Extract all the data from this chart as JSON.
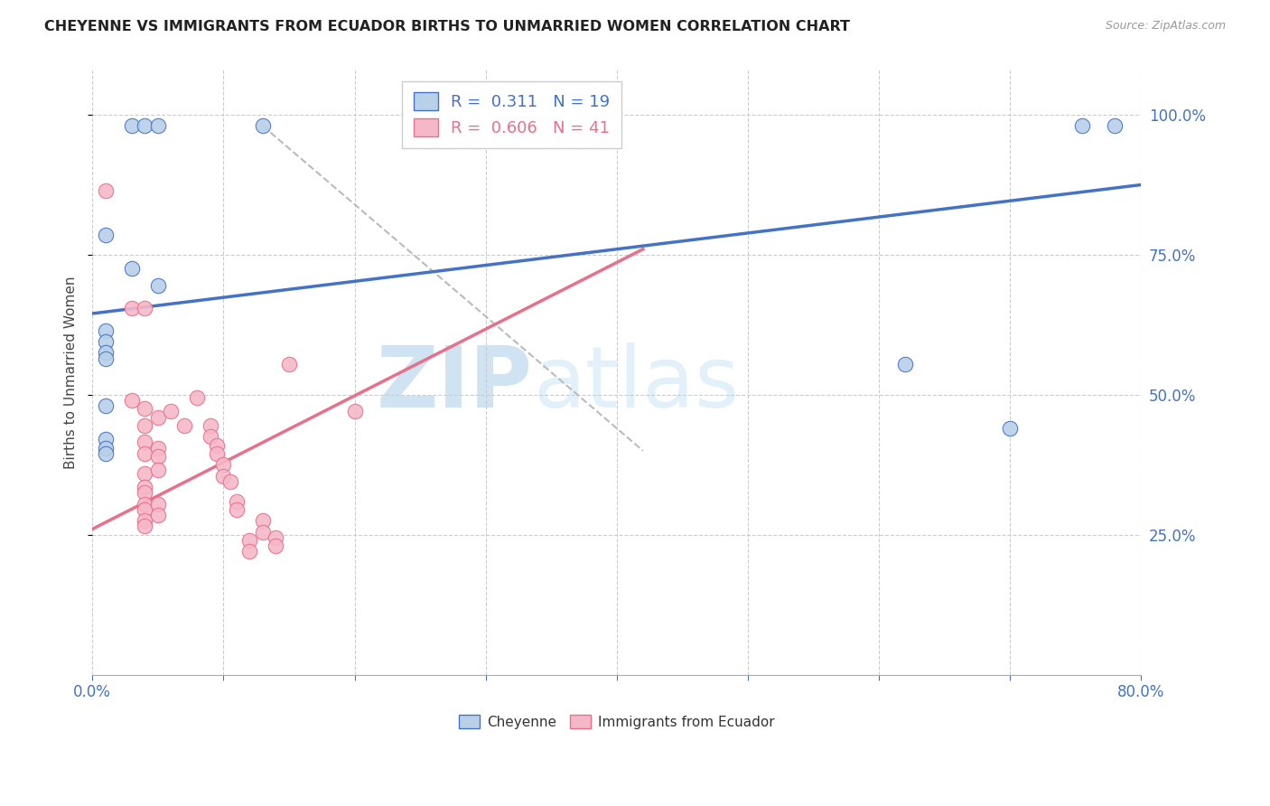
{
  "title": "CHEYENNE VS IMMIGRANTS FROM ECUADOR BIRTHS TO UNMARRIED WOMEN CORRELATION CHART",
  "source": "Source: ZipAtlas.com",
  "ylabel": "Births to Unmarried Women",
  "legend_blue_label": "Cheyenne",
  "legend_pink_label": "Immigrants from Ecuador",
  "r_blue": 0.311,
  "n_blue": 19,
  "r_pink": 0.606,
  "n_pink": 41,
  "blue_color": "#b8d0e8",
  "pink_color": "#f5b8c8",
  "blue_line_color": "#4472c4",
  "pink_line_color": "#e8708a",
  "blue_scatter": [
    [
      0.01,
      0.785
    ],
    [
      0.03,
      0.98
    ],
    [
      0.04,
      0.98
    ],
    [
      0.05,
      0.98
    ],
    [
      0.03,
      0.725
    ],
    [
      0.05,
      0.695
    ],
    [
      0.01,
      0.615
    ],
    [
      0.01,
      0.595
    ],
    [
      0.01,
      0.575
    ],
    [
      0.01,
      0.565
    ],
    [
      0.01,
      0.48
    ],
    [
      0.01,
      0.42
    ],
    [
      0.01,
      0.405
    ],
    [
      0.01,
      0.395
    ],
    [
      0.13,
      0.98
    ],
    [
      0.62,
      0.555
    ],
    [
      0.7,
      0.44
    ],
    [
      0.755,
      0.98
    ],
    [
      0.78,
      0.98
    ]
  ],
  "pink_scatter": [
    [
      0.01,
      0.865
    ],
    [
      0.03,
      0.655
    ],
    [
      0.03,
      0.49
    ],
    [
      0.04,
      0.655
    ],
    [
      0.04,
      0.475
    ],
    [
      0.04,
      0.445
    ],
    [
      0.04,
      0.415
    ],
    [
      0.04,
      0.395
    ],
    [
      0.04,
      0.36
    ],
    [
      0.04,
      0.335
    ],
    [
      0.04,
      0.325
    ],
    [
      0.04,
      0.305
    ],
    [
      0.04,
      0.295
    ],
    [
      0.04,
      0.275
    ],
    [
      0.04,
      0.265
    ],
    [
      0.05,
      0.46
    ],
    [
      0.05,
      0.405
    ],
    [
      0.05,
      0.39
    ],
    [
      0.05,
      0.365
    ],
    [
      0.05,
      0.305
    ],
    [
      0.05,
      0.285
    ],
    [
      0.06,
      0.47
    ],
    [
      0.07,
      0.445
    ],
    [
      0.08,
      0.495
    ],
    [
      0.09,
      0.445
    ],
    [
      0.09,
      0.425
    ],
    [
      0.095,
      0.41
    ],
    [
      0.095,
      0.395
    ],
    [
      0.1,
      0.375
    ],
    [
      0.1,
      0.355
    ],
    [
      0.105,
      0.345
    ],
    [
      0.11,
      0.31
    ],
    [
      0.11,
      0.295
    ],
    [
      0.12,
      0.24
    ],
    [
      0.12,
      0.22
    ],
    [
      0.13,
      0.275
    ],
    [
      0.13,
      0.255
    ],
    [
      0.14,
      0.245
    ],
    [
      0.14,
      0.23
    ],
    [
      0.15,
      0.555
    ],
    [
      0.2,
      0.47
    ]
  ],
  "xlim": [
    0.0,
    0.8
  ],
  "ylim": [
    0.0,
    1.08
  ],
  "grid_yticks": [
    0.25,
    0.5,
    0.75,
    1.0
  ],
  "blue_line_x": [
    0.0,
    0.8
  ],
  "blue_line_y": [
    0.645,
    0.875
  ],
  "pink_line_x": [
    0.0,
    0.42
  ],
  "pink_line_y": [
    0.26,
    0.76
  ],
  "dash_line_x": [
    0.13,
    0.42
  ],
  "dash_line_y": [
    0.98,
    0.4
  ],
  "grid_color": "#cccccc",
  "background_color": "#ffffff",
  "watermark_zip": "ZIP",
  "watermark_atlas": "atlas",
  "watermark_color": "#d8eaf8"
}
